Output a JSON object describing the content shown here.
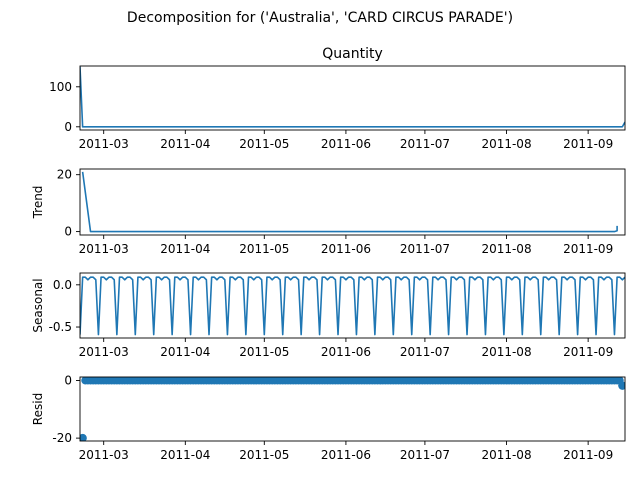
{
  "figure": {
    "suptitle": "Decomposition for ('Australia', 'CARD CIRCUS PARADE')"
  },
  "chart_data": [
    {
      "type": "line",
      "title": "Quantity",
      "ylabel": "",
      "x_range": [
        "2011-02-20",
        "2011-09-15"
      ],
      "ylim": [
        -8,
        152
      ],
      "yticks": [
        0,
        100
      ],
      "x_ticks": [
        "2011-03",
        "2011-04",
        "2011-05",
        "2011-06",
        "2011-07",
        "2011-08",
        "2011-09"
      ],
      "series": [
        {
          "points": [
            [
              "2011-02-20",
              150
            ],
            [
              "2011-02-21",
              0
            ],
            [
              "2011-09-14",
              0
            ],
            [
              "2011-09-15",
              12
            ]
          ]
        }
      ]
    },
    {
      "type": "line",
      "title": "",
      "ylabel": "Trend",
      "x_range": [
        "2011-02-20",
        "2011-09-15"
      ],
      "ylim": [
        -1.2,
        22
      ],
      "yticks": [
        0,
        20
      ],
      "x_ticks": [
        "2011-03",
        "2011-04",
        "2011-05",
        "2011-06",
        "2011-07",
        "2011-08",
        "2011-09"
      ],
      "series": [
        {
          "points": [
            [
              "2011-02-21",
              21
            ],
            [
              "2011-02-24",
              0
            ],
            [
              "2011-09-11",
              0
            ],
            [
              "2011-09-12",
              0.3
            ],
            [
              "2011-09-12",
              2
            ]
          ]
        }
      ]
    },
    {
      "type": "line",
      "title": "",
      "ylabel": "Seasonal",
      "x_range": [
        "2011-02-20",
        "2011-09-15"
      ],
      "ylim": [
        -0.63,
        0.14
      ],
      "yticks": [
        0.0,
        -0.5
      ],
      "x_ticks": [
        "2011-03",
        "2011-04",
        "2011-05",
        "2011-06",
        "2011-07",
        "2011-08",
        "2011-09"
      ],
      "period_days": 7,
      "weekly_pattern": [
        -0.59,
        0.09,
        0.09,
        0.06,
        0.09,
        0.09,
        0.06
      ],
      "series": [
        {
          "start": "2011-02-20",
          "end": "2011-09-15"
        }
      ]
    },
    {
      "type": "scatter",
      "title": "",
      "ylabel": "Resid",
      "x_range": [
        "2011-02-20",
        "2011-09-15"
      ],
      "ylim": [
        -21,
        1.2
      ],
      "yticks": [
        0,
        -20
      ],
      "x_ticks": [
        "2011-03",
        "2011-04",
        "2011-05",
        "2011-06",
        "2011-07",
        "2011-08",
        "2011-09"
      ],
      "outliers": [
        [
          "2011-02-21",
          -20
        ],
        [
          "2011-09-14",
          -1.8
        ]
      ],
      "baseline_value": 0,
      "baseline_start": "2011-02-22",
      "baseline_end": "2011-09-13"
    }
  ],
  "style": {
    "line_color": "#1f77b4",
    "axis_color": "#000000",
    "background": "#ffffff"
  }
}
